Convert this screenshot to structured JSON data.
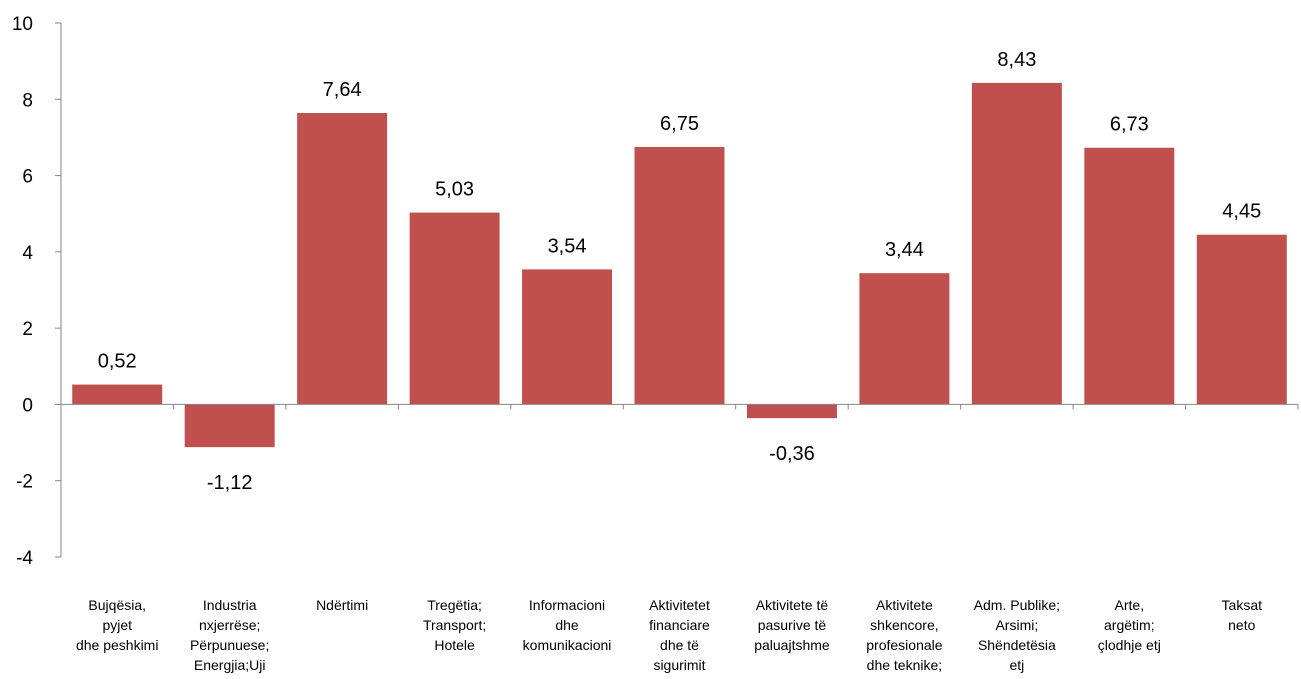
{
  "chart_data": {
    "type": "bar",
    "title": "",
    "xlabel": "",
    "ylabel": "",
    "ylim": [
      -4,
      10
    ],
    "yticks": [
      10,
      8,
      6,
      4,
      2,
      0,
      -2,
      -4
    ],
    "grid": false,
    "legend": "none",
    "bar_color": "#c0504d",
    "categories": [
      [
        "Bujqësia,",
        "pyjet",
        "dhe peshkimi"
      ],
      [
        "Industria",
        "nxjerrëse;",
        "Përpunuese;",
        "Energjia;Uji"
      ],
      [
        "Ndërtimi"
      ],
      [
        "Tregëtia;",
        "Transport;",
        "Hotele"
      ],
      [
        "Informacioni",
        "dhe",
        "komunikacioni"
      ],
      [
        "Aktivitetet",
        "financiare",
        "dhe të",
        "sigurimit"
      ],
      [
        "Aktivitete të",
        "pasurive të",
        "paluajtshme"
      ],
      [
        "Aktivitete",
        "shkencore,",
        "profesionale",
        "dhe teknike;"
      ],
      [
        "Adm. Publike;",
        "Arsimi;",
        "Shëndetësia",
        "etj"
      ],
      [
        "Arte,",
        "argëtim;",
        "çlodhje etj"
      ],
      [
        "Taksat",
        "neto"
      ]
    ],
    "values": [
      0.52,
      -1.12,
      7.64,
      5.03,
      3.54,
      6.75,
      -0.36,
      3.44,
      8.43,
      6.73,
      4.45
    ],
    "value_labels": [
      "0,52",
      "-1,12",
      "7,64",
      "5,03",
      "3,54",
      "6,75",
      "-0,36",
      "3,44",
      "8,43",
      "6,73",
      "4,45"
    ]
  }
}
